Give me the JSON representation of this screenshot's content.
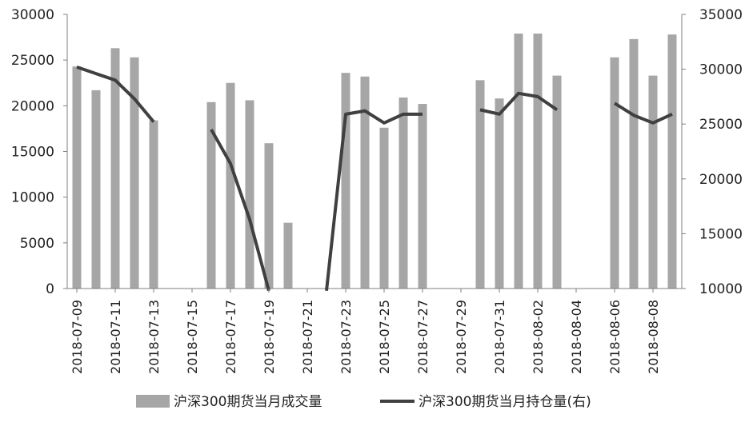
{
  "chart_data": {
    "type": "bar",
    "y_left": {
      "min": 0,
      "max": 30000,
      "ticks": [
        0,
        5000,
        10000,
        15000,
        20000,
        25000,
        30000
      ]
    },
    "y_right": {
      "min": 10000,
      "max": 35000,
      "ticks": [
        10000,
        15000,
        20000,
        25000,
        30000,
        35000
      ]
    },
    "x_ticks": [
      "2018-07-09",
      "2018-07-11",
      "2018-07-13",
      "2018-07-15",
      "2018-07-17",
      "2018-07-19",
      "2018-07-21",
      "2018-07-23",
      "2018-07-25",
      "2018-07-27",
      "2018-07-29",
      "2018-07-31",
      "2018-08-02",
      "2018-08-04",
      "2018-08-06",
      "2018-08-08"
    ],
    "dates": [
      "2018-07-09",
      "2018-07-10",
      "2018-07-11",
      "2018-07-12",
      "2018-07-13",
      "2018-07-14",
      "2018-07-15",
      "2018-07-16",
      "2018-07-17",
      "2018-07-18",
      "2018-07-19",
      "2018-07-20",
      "2018-07-21",
      "2018-07-22",
      "2018-07-23",
      "2018-07-24",
      "2018-07-25",
      "2018-07-26",
      "2018-07-27",
      "2018-07-28",
      "2018-07-29",
      "2018-07-30",
      "2018-07-31",
      "2018-08-01",
      "2018-08-02",
      "2018-08-03",
      "2018-08-04",
      "2018-08-05",
      "2018-08-06",
      "2018-08-07",
      "2018-08-08",
      "2018-08-09"
    ],
    "series": [
      {
        "name": "沪深300期货当月成交量",
        "kind": "bar",
        "axis": "left",
        "color": "#a6a6a6",
        "values": [
          24300,
          21700,
          26300,
          25300,
          18400,
          null,
          null,
          20400,
          22500,
          20600,
          15900,
          7200,
          null,
          null,
          23600,
          23200,
          17600,
          20900,
          20200,
          null,
          null,
          22800,
          20800,
          27900,
          27900,
          23300,
          null,
          null,
          25300,
          27300,
          23300,
          27800
        ]
      },
      {
        "name": "沪深300期货当月持仓量(右)",
        "kind": "line",
        "axis": "right",
        "color": "#404040",
        "values": [
          30200,
          29600,
          29000,
          27300,
          25200,
          null,
          null,
          24500,
          21400,
          16300,
          9800,
          null,
          null,
          9800,
          25900,
          26200,
          25100,
          25900,
          25900,
          null,
          null,
          26300,
          25900,
          27800,
          27500,
          26300,
          null,
          null,
          26900,
          25800,
          25100,
          25900
        ]
      }
    ],
    "legend": "bottom"
  }
}
